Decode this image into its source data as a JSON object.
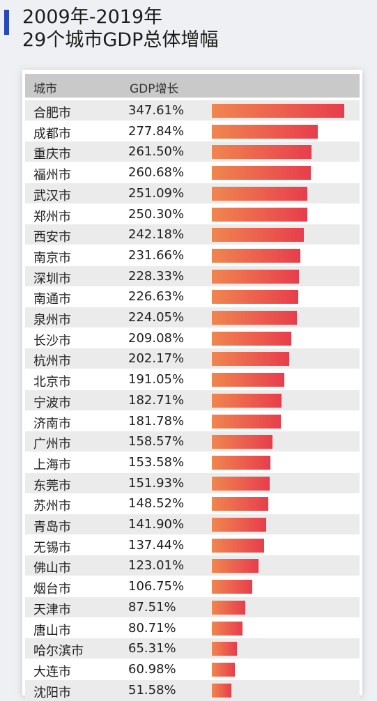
{
  "title": {
    "line1": "2009年-2019年",
    "line2": "29个城市GDP总体增幅"
  },
  "colors": {
    "accent": "#2748b8",
    "bar_start": "#f0864f",
    "bar_end": "#e83d4c"
  },
  "chart_data": {
    "type": "bar",
    "orientation": "horizontal",
    "columns": [
      "城市",
      "GDP增长"
    ],
    "categories": [
      "合肥市",
      "成都市",
      "重庆市",
      "福州市",
      "武汉市",
      "郑州市",
      "西安市",
      "南京市",
      "深圳市",
      "南通市",
      "泉州市",
      "长沙市",
      "杭州市",
      "北京市",
      "宁波市",
      "济南市",
      "广州市",
      "上海市",
      "东莞市",
      "苏州市",
      "青岛市",
      "无锡市",
      "佛山市",
      "烟台市",
      "天津市",
      "唐山市",
      "哈尔滨市",
      "大连市",
      "沈阳市"
    ],
    "values": [
      347.61,
      277.84,
      261.5,
      260.68,
      251.09,
      250.3,
      242.18,
      231.66,
      228.33,
      226.63,
      224.05,
      209.08,
      202.17,
      191.05,
      182.71,
      181.78,
      158.57,
      153.58,
      151.93,
      148.52,
      141.9,
      137.44,
      123.01,
      106.75,
      87.51,
      80.71,
      65.31,
      60.98,
      51.58
    ],
    "labels": [
      "347.61%",
      "277.84%",
      "261.50%",
      "260.68%",
      "251.09%",
      "250.30%",
      "242.18%",
      "231.66%",
      "228.33%",
      "226.63%",
      "224.05%",
      "209.08%",
      "202.17%",
      "191.05%",
      "182.71%",
      "181.78%",
      "158.57%",
      "153.58%",
      "151.93%",
      "148.52%",
      "141.90%",
      "137.44%",
      "123.01%",
      "106.75%",
      "87.51%",
      "80.71%",
      "65.31%",
      "60.98%",
      "51.58%"
    ],
    "unit": "%",
    "xlim": [
      0,
      347.61
    ]
  }
}
